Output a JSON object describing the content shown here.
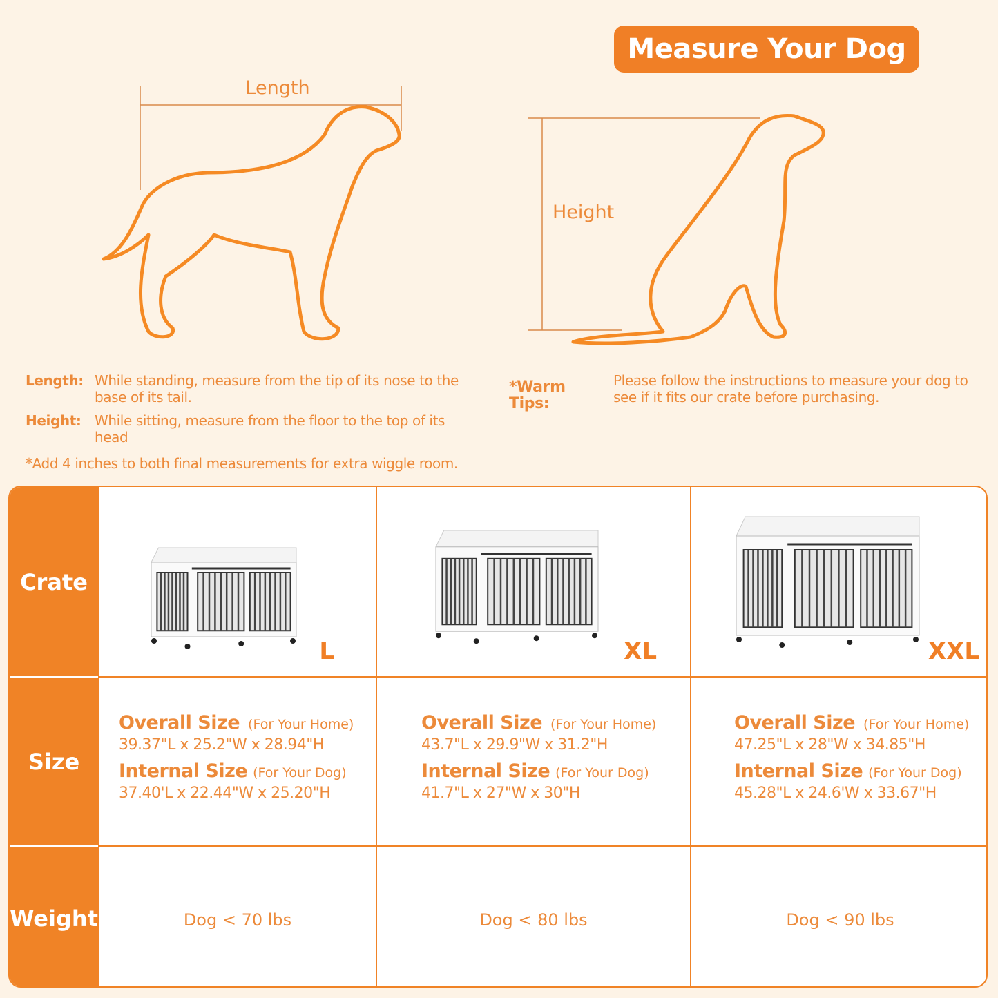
{
  "title": "Measure Your Dog",
  "diagram": {
    "length_label": "Length",
    "height_label": "Height",
    "outline_color": "#f58a24"
  },
  "instructions": {
    "length": {
      "term": "Length:",
      "text": "While standing, measure from the tip of its nose to the base of its tail."
    },
    "height": {
      "term": "Height:",
      "text": "While sitting, measure from the floor to the top of its head"
    },
    "note": "*Add 4 inches to both final measurements for extra wiggle room.",
    "tips": {
      "term": "*Warm Tips:",
      "text": "Please follow the instructions to measure your dog to see if it fits our crate before purchasing."
    }
  },
  "table": {
    "row_headers": [
      "Crate",
      "Size",
      "Weight"
    ],
    "overall_label": "Overall Size",
    "overall_note": "(For Your Home)",
    "internal_label": "Internal Size",
    "internal_note": "(For Your Dog)",
    "columns": [
      {
        "size": "L",
        "overall": "39.37\"L x 25.2\"W x 28.94\"H",
        "internal": "37.40'L x 22.44\"W x 25.20\"H",
        "weight": "Dog < 70 lbs"
      },
      {
        "size": "XL",
        "overall": "43.7\"L x 29.9\"W x 31.2\"H",
        "internal": "41.7\"L x 27\"W x 30\"H",
        "weight": "Dog < 80 lbs"
      },
      {
        "size": "XXL",
        "overall": "47.25\"L x 28\"W x 34.85\"H",
        "internal": "45.28\"L x 24.6'W x 33.67\"H",
        "weight": "Dog < 90 lbs"
      }
    ]
  },
  "colors": {
    "accent": "#f08326",
    "background": "#fdf3e6",
    "text": "#ec8a3a"
  }
}
